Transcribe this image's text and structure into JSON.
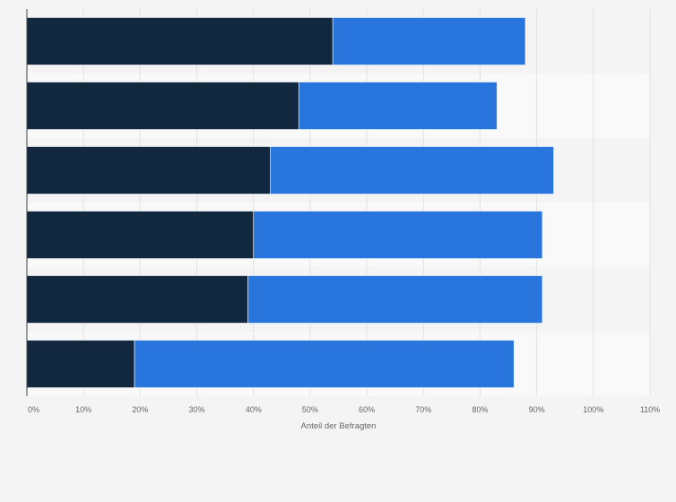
{
  "chart_data": {
    "type": "bar",
    "orientation": "horizontal",
    "stacked": true,
    "title": "",
    "xlabel": "Anteil der Befragten",
    "ylabel": "",
    "xlim": [
      0,
      110
    ],
    "x_ticks": [
      0,
      10,
      20,
      30,
      40,
      50,
      60,
      70,
      80,
      90,
      100,
      110
    ],
    "x_tick_labels": [
      "0%",
      "10%",
      "20%",
      "30%",
      "40%",
      "50%",
      "60%",
      "70%",
      "80%",
      "90%",
      "100%",
      "110%"
    ],
    "grid": true,
    "legend": "none",
    "categories": [
      "",
      "",
      "",
      "",
      "",
      ""
    ],
    "series": [
      {
        "color": "#12283f",
        "values": [
          54,
          48,
          43,
          40,
          39,
          19
        ]
      },
      {
        "color": "#2876dd",
        "values": [
          34,
          35,
          50,
          51,
          52,
          67
        ]
      }
    ]
  },
  "colors": {
    "background": "#f4f4f4",
    "band_light": "#f9f9f9",
    "band_dark": "#f4f4f4",
    "grid": "#e2e2e2",
    "axis": "#444444",
    "text": "#666666"
  }
}
